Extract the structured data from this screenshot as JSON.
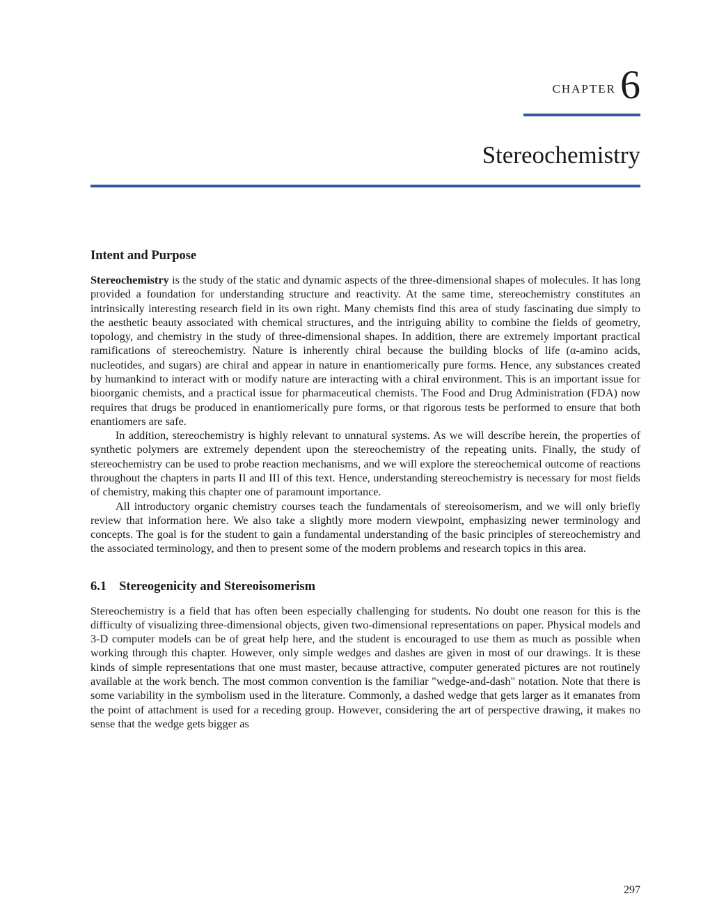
{
  "colors": {
    "rule": "#2c5a9c",
    "text": "#1a1a1a",
    "background": "#ffffff"
  },
  "typography": {
    "body_family": "Palatino Linotype, Book Antiqua, Palatino, Georgia, serif",
    "body_size_pt": 12,
    "heading_size_pt": 14,
    "title_size_pt": 26,
    "chapter_num_size_pt": 44,
    "line_height": 1.245
  },
  "chapter": {
    "label": "CHAPTER",
    "number": "6",
    "title": "Stereochemistry"
  },
  "sections": {
    "intent": {
      "heading": "Intent and Purpose",
      "bold_lead": "Stereochemistry",
      "p1_rest": " is the study of the static and dynamic aspects of the three-dimensional shapes of molecules. It has long provided a foundation for understanding structure and reactivity. At the same time, stereochemistry constitutes an intrinsically interesting research field in its own right. Many chemists find this area of study fascinating due simply to the aesthetic beauty associated with chemical structures, and the intriguing ability to combine the fields of geometry, topology, and chemistry in the study of three-dimensional shapes. In addition, there are extremely important practical ramifications of stereochemistry. Nature is inherently chiral because the building blocks of life (α-amino acids, nucleotides, and sugars) are chiral and appear in nature in enantiomerically pure forms. Hence, any substances created by humankind to interact with or modify nature are interacting with a chiral environment. This is an important issue for bioorganic chemists, and a practical issue for pharmaceutical chemists. The Food and Drug Administration (FDA) now requires that drugs be produced in enantiomerically pure forms, or that rigorous tests be performed to ensure that both enantiomers are safe.",
      "p2": "In addition, stereochemistry is highly relevant to unnatural systems. As we will describe herein, the properties of synthetic polymers are extremely dependent upon the stereochemistry of the repeating units. Finally, the study of stereochemistry can be used to probe reaction mechanisms, and we will explore the stereochemical outcome of reactions throughout the chapters in parts II and III of this text. Hence, understanding stereochemistry is necessary for most fields of chemistry, making this chapter one of paramount importance.",
      "p3": "All introductory organic chemistry courses teach the fundamentals of stereoisomerism, and we will only briefly review that information here. We also take a slightly more modern viewpoint, emphasizing newer terminology and concepts. The goal is for the student to gain a fundamental understanding of the basic principles of stereochemistry and the associated terminology, and then to present some of the modern problems and research topics in this area."
    },
    "s61": {
      "number": "6.1",
      "heading": "Stereogenicity and Stereoisomerism",
      "p1": "Stereochemistry is a field that has often been especially challenging for students. No doubt one reason for this is the difficulty of visualizing three-dimensional objects, given two-dimensional representations on paper. Physical models and 3-D computer models can be of great help here, and the student is encouraged to use them as much as possible when working through this chapter. However, only simple wedges and dashes are given in most of our drawings. It is these kinds of simple representations that one must master, because attractive, computer generated pictures are not routinely available at the work bench. The most common convention is the familiar \"wedge-and-dash\" notation. Note that there is some variability in the symbolism used in the literature. Commonly, a dashed wedge that gets larger as it emanates from the point of attachment is used for a receding group. However, considering the art of perspective drawing, it makes no sense that the wedge gets bigger as"
    }
  },
  "page_number": "297"
}
